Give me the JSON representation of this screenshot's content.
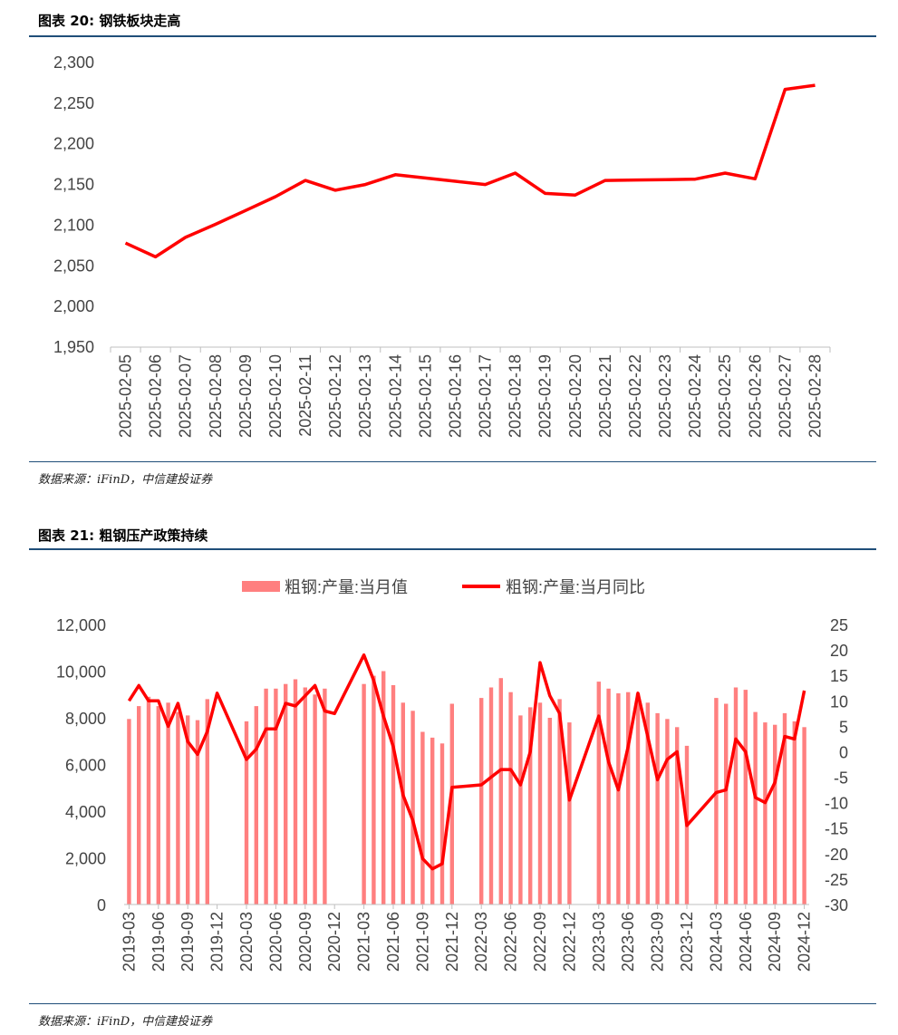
{
  "figure20": {
    "title": "图表 20: 钢铁板块走高",
    "source": "数据来源：iFinD，中信建投证券"
  },
  "figure21": {
    "title": "图表 21: 粗钢压产政策持续",
    "source": "数据来源：iFinD，中信建投证券"
  },
  "colors": {
    "rule": "#1f4e79",
    "line": "#ff0000",
    "bar": "#ff7f7f"
  },
  "chart_data": [
    {
      "type": "line",
      "title": "钢铁板块走高",
      "ylim": [
        1950,
        2300
      ],
      "yticks": [
        1950,
        2000,
        2050,
        2100,
        2150,
        2200,
        2250,
        2300
      ],
      "ytick_labels": [
        "1,950",
        "2,000",
        "2,050",
        "2,100",
        "2,150",
        "2,200",
        "2,250",
        "2,300"
      ],
      "categories": [
        "2025-02-05",
        "2025-02-06",
        "2025-02-07",
        "2025-02-08",
        "2025-02-09",
        "2025-02-10",
        "2025-02-11",
        "2025-02-12",
        "2025-02-13",
        "2025-02-14",
        "2025-02-15",
        "2025-02-16",
        "2025-02-17",
        "2025-02-18",
        "2025-02-19",
        "2025-02-20",
        "2025-02-21",
        "2025-02-22",
        "2025-02-23",
        "2025-02-24",
        "2025-02-25",
        "2025-02-26",
        "2025-02-27",
        "2025-02-28"
      ],
      "values": [
        2078,
        2061,
        2085,
        2101,
        2118,
        2135,
        2155,
        2143,
        2150,
        2162,
        2158,
        2154,
        2150,
        2164,
        2139,
        2137,
        2155,
        2155.5,
        2156,
        2156.5,
        2164,
        2157,
        2267,
        2272
      ]
    },
    {
      "type": "bar+line",
      "title": "粗钢压产政策持续",
      "series": [
        {
          "name": "粗钢:产量:当月值",
          "type": "bar",
          "axis": "left"
        },
        {
          "name": "粗钢:产量:当月同比",
          "type": "line",
          "axis": "right"
        }
      ],
      "y_left": {
        "ylim": [
          0,
          12000
        ],
        "ticks": [
          0,
          2000,
          4000,
          6000,
          8000,
          10000,
          12000
        ],
        "labels": [
          "0",
          "2,000",
          "4,000",
          "6,000",
          "8,000",
          "10,000",
          "12,000"
        ]
      },
      "y_right": {
        "ylim": [
          -30,
          25
        ],
        "ticks": [
          -30,
          -25,
          -20,
          -15,
          -10,
          -5,
          0,
          5,
          10,
          15,
          20,
          25
        ],
        "labels": [
          "-30",
          "-25",
          "-20",
          "-15",
          "-10",
          "-5",
          "0",
          "5",
          "10",
          "15",
          "20",
          "25"
        ]
      },
      "x_tick_labels": [
        "2019-03",
        "2019-06",
        "2019-09",
        "2019-12",
        "2020-03",
        "2020-06",
        "2020-09",
        "2020-12",
        "2021-03",
        "2021-06",
        "2021-09",
        "2021-12",
        "2022-03",
        "2022-06",
        "2022-09",
        "2022-12",
        "2023-03",
        "2023-06",
        "2023-09",
        "2023-12",
        "2024-03",
        "2024-06",
        "2024-09",
        "2024-12"
      ],
      "x_tick_index": [
        0,
        3,
        6,
        9,
        12,
        15,
        18,
        21,
        24,
        27,
        30,
        33,
        36,
        39,
        42,
        45,
        48,
        51,
        54,
        57,
        60,
        63,
        66,
        69
      ],
      "bars": [
        [
          0,
          7950
        ],
        [
          1,
          8500
        ],
        [
          2,
          8900
        ],
        [
          3,
          8500
        ],
        [
          4,
          8650
        ],
        [
          5,
          8250
        ],
        [
          6,
          8100
        ],
        [
          7,
          7900
        ],
        [
          8,
          8800
        ],
        [
          12,
          7850
        ],
        [
          13,
          8500
        ],
        [
          14,
          9250
        ],
        [
          15,
          9250
        ],
        [
          16,
          9450
        ],
        [
          17,
          9650
        ],
        [
          18,
          9300
        ],
        [
          19,
          9000
        ],
        [
          20,
          9250
        ],
        [
          24,
          9450
        ],
        [
          25,
          9800
        ],
        [
          26,
          10000
        ],
        [
          27,
          9400
        ],
        [
          28,
          8650
        ],
        [
          29,
          8300
        ],
        [
          30,
          7400
        ],
        [
          31,
          7150
        ],
        [
          32,
          6900
        ],
        [
          33,
          8600
        ],
        [
          36,
          8850
        ],
        [
          37,
          9300
        ],
        [
          38,
          9700
        ],
        [
          39,
          9100
        ],
        [
          40,
          8100
        ],
        [
          41,
          8450
        ],
        [
          42,
          8650
        ],
        [
          43,
          8000
        ],
        [
          44,
          8800
        ],
        [
          45,
          7800
        ],
        [
          48,
          9550
        ],
        [
          49,
          9250
        ],
        [
          50,
          9050
        ],
        [
          51,
          9100
        ],
        [
          52,
          9050
        ],
        [
          53,
          8650
        ],
        [
          54,
          8200
        ],
        [
          55,
          7950
        ],
        [
          56,
          7600
        ],
        [
          57,
          6800
        ],
        [
          60,
          8850
        ],
        [
          61,
          8600
        ],
        [
          62,
          9300
        ],
        [
          63,
          9200
        ],
        [
          64,
          8250
        ],
        [
          65,
          7800
        ],
        [
          66,
          7700
        ],
        [
          67,
          8200
        ],
        [
          68,
          7850
        ],
        [
          69,
          7600
        ]
      ],
      "yoy": [
        [
          0,
          10
        ],
        [
          1,
          13
        ],
        [
          2,
          10
        ],
        [
          3,
          10
        ],
        [
          4,
          5
        ],
        [
          5,
          9.5
        ],
        [
          6,
          2
        ],
        [
          7,
          -0.5
        ],
        [
          8,
          4
        ],
        [
          9,
          11.5
        ],
        [
          12,
          -1.5
        ],
        [
          13,
          0.5
        ],
        [
          14,
          4.5
        ],
        [
          15,
          4.5
        ],
        [
          16,
          9.5
        ],
        [
          17,
          9
        ],
        [
          18,
          11
        ],
        [
          19,
          13
        ],
        [
          20,
          8
        ],
        [
          21,
          7.5
        ],
        [
          24,
          19
        ],
        [
          25,
          14
        ],
        [
          26,
          7
        ],
        [
          27,
          1
        ],
        [
          28,
          -8.5
        ],
        [
          29,
          -13.5
        ],
        [
          30,
          -21
        ],
        [
          31,
          -23
        ],
        [
          32,
          -22
        ],
        [
          33,
          -7
        ],
        [
          36,
          -6.5
        ],
        [
          37,
          -5
        ],
        [
          38,
          -3.5
        ],
        [
          39,
          -3.5
        ],
        [
          40,
          -6.5
        ],
        [
          41,
          0
        ],
        [
          42,
          17.5
        ],
        [
          43,
          11
        ],
        [
          44,
          7.5
        ],
        [
          45,
          -9.5
        ],
        [
          48,
          7
        ],
        [
          49,
          -2
        ],
        [
          50,
          -7.5
        ],
        [
          51,
          1
        ],
        [
          52,
          11.5
        ],
        [
          53,
          3
        ],
        [
          54,
          -5.5
        ],
        [
          55,
          -1.5
        ],
        [
          56,
          0
        ],
        [
          57,
          -14.5
        ],
        [
          60,
          -8
        ],
        [
          61,
          -7.5
        ],
        [
          62,
          2.5
        ],
        [
          63,
          0
        ],
        [
          64,
          -9
        ],
        [
          65,
          -10
        ],
        [
          66,
          -6
        ],
        [
          67,
          3
        ],
        [
          68,
          2.5
        ],
        [
          69,
          12
        ]
      ]
    }
  ]
}
